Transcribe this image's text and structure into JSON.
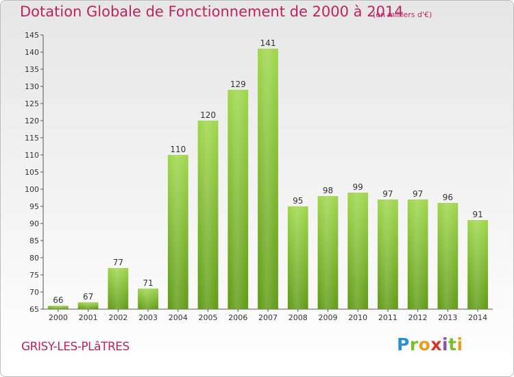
{
  "header": {
    "title": "Dotation Globale de Fonctionnement de 2000 à 2014",
    "subtitle": "(en milliers d'€)"
  },
  "footer": {
    "place": "GRISY-LES-PLâTRES",
    "logo": "Proxiti"
  },
  "colors": {
    "title": "#c0235c",
    "bar_light": "#9ed64a",
    "bar_dark": "#5e9a14",
    "grid": "#dcdcdc",
    "text": "#333333"
  },
  "chart_data": {
    "type": "bar",
    "title": "Dotation Globale de Fonctionnement de 2000 à 2014",
    "subtitle": "(en milliers d'€)",
    "xlabel": "",
    "ylabel": "",
    "categories": [
      "2000",
      "2001",
      "2002",
      "2003",
      "2004",
      "2005",
      "2006",
      "2007",
      "2008",
      "2009",
      "2010",
      "2011",
      "2012",
      "2013",
      "2014"
    ],
    "values": [
      66,
      67,
      77,
      71,
      110,
      120,
      129,
      141,
      95,
      98,
      99,
      97,
      97,
      96,
      91
    ],
    "ylim": [
      65,
      145
    ],
    "yticks": [
      65,
      70,
      75,
      80,
      85,
      90,
      95,
      100,
      105,
      110,
      115,
      120,
      125,
      130,
      135,
      140,
      145
    ],
    "grid": false,
    "data_labels": true
  }
}
